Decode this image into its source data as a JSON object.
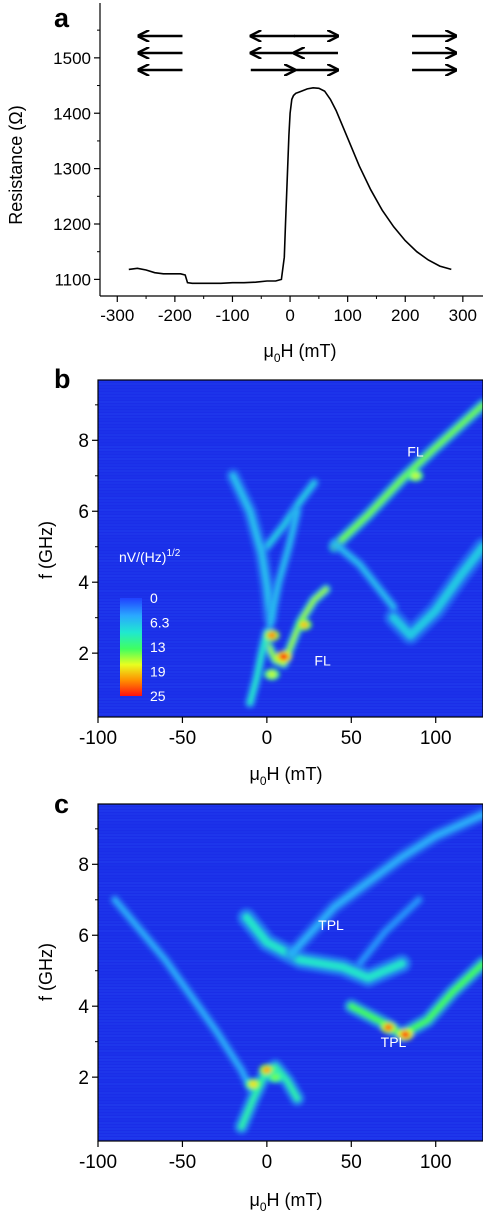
{
  "panels": {
    "a": {
      "letter": "a",
      "chart_data": {
        "type": "line",
        "xlabel_parts": [
          "μ",
          "0",
          "H (mT)"
        ],
        "ylabel": "Resistance (Ω)",
        "xlim": [
          -330,
          335
        ],
        "ylim": [
          1070,
          1590
        ],
        "xticks": [
          -300,
          -200,
          -100,
          0,
          100,
          200,
          300
        ],
        "xtick_labels": [
          "-300",
          "-200",
          "-100",
          "0",
          "100",
          "200",
          "300"
        ],
        "yticks": [
          1100,
          1200,
          1300,
          1400,
          1500
        ],
        "ytick_labels": [
          "1100",
          "1200",
          "1300",
          "1400",
          "1500"
        ],
        "series": [
          {
            "x": [
              -280,
              -265,
              -250,
              -235,
              -220,
              -205,
              -190,
              -182,
              -178,
              -170,
              -150,
              -120,
              -100,
              -80,
              -60,
              -40,
              -25,
              -15,
              -10,
              -8,
              -5,
              -2,
              0,
              3,
              6,
              10,
              15,
              20,
              30,
              40,
              50,
              60,
              70,
              80,
              90,
              100,
              120,
              140,
              160,
              180,
              200,
              220,
              240,
              260,
              280
            ],
            "y": [
              1118,
              1120,
              1117,
              1112,
              1110,
              1110,
              1110,
              1108,
              1094,
              1093,
              1093,
              1093,
              1094,
              1094,
              1095,
              1097,
              1097,
              1100,
              1140,
              1200,
              1280,
              1360,
              1400,
              1425,
              1432,
              1436,
              1438,
              1440,
              1444,
              1446,
              1445,
              1440,
              1425,
              1405,
              1380,
              1355,
              1305,
              1262,
              1225,
              1195,
              1170,
              1150,
              1135,
              1124,
              1118
            ]
          }
        ],
        "state_groups": [
          {
            "x": -225,
            "arrows": [
              "left",
              "left",
              "left"
            ]
          },
          {
            "x": -30,
            "arrows": [
              "left",
              "left",
              "right"
            ]
          },
          {
            "x": 45,
            "arrows": [
              "right",
              "left",
              "right"
            ]
          },
          {
            "x": 250,
            "arrows": [
              "right",
              "right",
              "right"
            ]
          }
        ]
      }
    },
    "b": {
      "letter": "b",
      "chart_data": {
        "type": "heatmap",
        "xlabel_parts": [
          "μ",
          "0",
          "H (mT)"
        ],
        "ylabel": "f (GHz)",
        "xlim": [
          -100,
          128
        ],
        "ylim": [
          0.2,
          9.7
        ],
        "xticks": [
          -100,
          -50,
          0,
          50,
          100
        ],
        "xtick_labels": [
          "-100",
          "-50",
          "0",
          "50",
          "100"
        ],
        "yticks": [
          2,
          4,
          6,
          8
        ],
        "ytick_labels": [
          "2",
          "4",
          "6",
          "8"
        ],
        "colorbar": {
          "title_base": "nV/(Hz)",
          "title_exponent": "1/2",
          "ticks": [
            "0",
            "6.3",
            "13",
            "19",
            "25"
          ],
          "range": [
            0,
            25
          ]
        },
        "annotations": [
          {
            "text": "FL",
            "x": 88,
            "y": 7.55
          },
          {
            "text": "FL",
            "x": 33,
            "y": 1.65
          }
        ],
        "modes": [
          {
            "points": [
              [
                40,
                5.0
              ],
              [
                60,
                5.9
              ],
              [
                80,
                6.9
              ],
              [
                100,
                7.8
              ],
              [
                128,
                9.0
              ]
            ],
            "intensity": 14,
            "width": 3.5
          },
          {
            "points": [
              [
                0,
                2.3
              ],
              [
                5,
                1.8
              ],
              [
                10,
                1.7
              ],
              [
                15,
                2.3
              ],
              [
                20,
                2.9
              ],
              [
                28,
                3.5
              ],
              [
                35,
                3.8
              ]
            ],
            "intensity": 15,
            "width": 3
          },
          {
            "points": [
              [
                0,
                5.0
              ],
              [
                10,
                5.6
              ],
              [
                20,
                6.3
              ],
              [
                28,
                6.8
              ]
            ],
            "intensity": 7,
            "width": 3
          },
          {
            "points": [
              [
                -20,
                7.0
              ],
              [
                -10,
                6.0
              ],
              [
                -3,
                4.8
              ],
              [
                0,
                3.9
              ],
              [
                2,
                3.0
              ]
            ],
            "intensity": 6,
            "width": 4
          },
          {
            "points": [
              [
                2,
                2.8
              ],
              [
                7,
                4.0
              ],
              [
                13,
                5.0
              ],
              [
                18,
                6.0
              ]
            ],
            "intensity": 6,
            "width": 3
          },
          {
            "points": [
              [
                75,
                3.0
              ],
              [
                85,
                2.5
              ],
              [
                100,
                3.2
              ],
              [
                115,
                4.2
              ],
              [
                128,
                5.0
              ]
            ],
            "intensity": 7,
            "width": 5
          },
          {
            "points": [
              [
                40,
                5.1
              ],
              [
                55,
                4.5
              ],
              [
                75,
                3.3
              ]
            ],
            "intensity": 6,
            "width": 3
          },
          {
            "points": [
              [
                -10,
                0.6
              ],
              [
                -6,
                1.3
              ],
              [
                -3,
                2.0
              ],
              [
                0,
                2.6
              ]
            ],
            "intensity": 9,
            "width": 3
          }
        ],
        "hotspots": [
          {
            "x": 10,
            "y": 1.9,
            "intensity": 25
          },
          {
            "x": 3,
            "y": 2.5,
            "intensity": 21
          },
          {
            "x": 3,
            "y": 1.4,
            "intensity": 16
          },
          {
            "x": 22,
            "y": 2.8,
            "intensity": 19
          },
          {
            "x": 88,
            "y": 7.0,
            "intensity": 16
          }
        ]
      }
    },
    "c": {
      "letter": "c",
      "chart_data": {
        "type": "heatmap",
        "xlabel_parts": [
          "μ",
          "0",
          "H (mT)"
        ],
        "ylabel": "f (GHz)",
        "xlim": [
          -100,
          128
        ],
        "ylim": [
          0.2,
          9.7
        ],
        "xticks": [
          -100,
          -50,
          0,
          50,
          100
        ],
        "xtick_labels": [
          "-100",
          "-50",
          "0",
          "50",
          "100"
        ],
        "yticks": [
          2,
          4,
          6,
          8
        ],
        "ytick_labels": [
          "2",
          "4",
          "6",
          "8"
        ],
        "annotations": [
          {
            "text": "TPL",
            "x": 38,
            "y": 6.15
          },
          {
            "text": "TPL",
            "x": 75,
            "y": 2.85
          }
        ],
        "modes": [
          {
            "points": [
              [
                -12,
                6.5
              ],
              [
                0,
                5.8
              ],
              [
                20,
                5.3
              ],
              [
                45,
                5.1
              ],
              [
                60,
                4.8
              ],
              [
                80,
                5.2
              ]
            ],
            "intensity": 9,
            "width": 5
          },
          {
            "points": [
              [
                50,
                4.0
              ],
              [
                70,
                3.5
              ],
              [
                80,
                3.2
              ],
              [
                95,
                3.6
              ],
              [
                110,
                4.4
              ],
              [
                128,
                5.2
              ]
            ],
            "intensity": 13,
            "width": 4
          },
          {
            "points": [
              [
                -90,
                7.0
              ],
              [
                -60,
                5.3
              ],
              [
                -30,
                3.3
              ],
              [
                -15,
                2.2
              ],
              [
                -10,
                1.7
              ]
            ],
            "intensity": 5,
            "width": 3
          },
          {
            "points": [
              [
                -15,
                0.6
              ],
              [
                -8,
                1.4
              ],
              [
                -2,
                2.0
              ],
              [
                5,
                2.3
              ],
              [
                12,
                1.9
              ],
              [
                18,
                1.4
              ]
            ],
            "intensity": 10,
            "width": 4
          },
          {
            "points": [
              [
                15,
                5.5
              ],
              [
                40,
                6.8
              ],
              [
                60,
                7.5
              ],
              [
                80,
                8.2
              ],
              [
                100,
                8.8
              ],
              [
                128,
                9.4
              ]
            ],
            "intensity": 5,
            "width": 4
          },
          {
            "points": [
              [
                55,
                5.2
              ],
              [
                70,
                6.1
              ],
              [
                90,
                7.0
              ]
            ],
            "intensity": 4,
            "width": 3
          }
        ],
        "hotspots": [
          {
            "x": 0,
            "y": 2.2,
            "intensity": 20
          },
          {
            "x": -8,
            "y": 1.8,
            "intensity": 18
          },
          {
            "x": 72,
            "y": 3.4,
            "intensity": 22
          },
          {
            "x": 82,
            "y": 3.2,
            "intensity": 24
          },
          {
            "x": 5,
            "y": 2.0,
            "intensity": 14
          }
        ]
      }
    }
  }
}
